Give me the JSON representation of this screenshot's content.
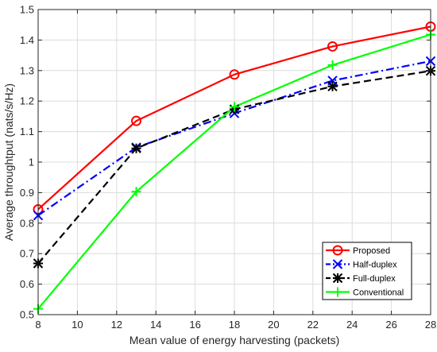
{
  "chart_data": {
    "type": "line",
    "title": "",
    "xlabel": "Mean value of energy harvesting (packets)",
    "ylabel": "Average throughtput (nats/s/Hz)",
    "x": [
      8,
      13,
      18,
      23,
      28
    ],
    "xlim": [
      8,
      28
    ],
    "ylim": [
      0.5,
      1.5
    ],
    "xticks": [
      "8",
      "10",
      "12",
      "14",
      "16",
      "18",
      "20",
      "22",
      "24",
      "26",
      "28"
    ],
    "yticks": [
      "0.5",
      "0.6",
      "0.7",
      "0.8",
      "0.9",
      "1",
      "1.1",
      "1.2",
      "1.3",
      "1.4",
      "1.5"
    ],
    "grid": true,
    "legend_position": "bottom-right",
    "series": [
      {
        "name": "Proposed",
        "values": [
          0.845,
          1.135,
          1.287,
          1.379,
          1.444
        ],
        "color": "#ff0000",
        "dash": "solid",
        "marker": "circle"
      },
      {
        "name": "Half-duplex",
        "values": [
          0.825,
          1.048,
          1.16,
          1.267,
          1.331
        ],
        "color": "#0000ff",
        "dash": "dashdot",
        "marker": "x"
      },
      {
        "name": "Full-duplex",
        "values": [
          0.668,
          1.045,
          1.173,
          1.248,
          1.299
        ],
        "color": "#000000",
        "dash": "dashed",
        "marker": "asterisk"
      },
      {
        "name": "Conventional",
        "values": [
          0.519,
          0.903,
          1.181,
          1.318,
          1.418
        ],
        "color": "#00ff00",
        "dash": "solid",
        "marker": "plus"
      }
    ]
  }
}
